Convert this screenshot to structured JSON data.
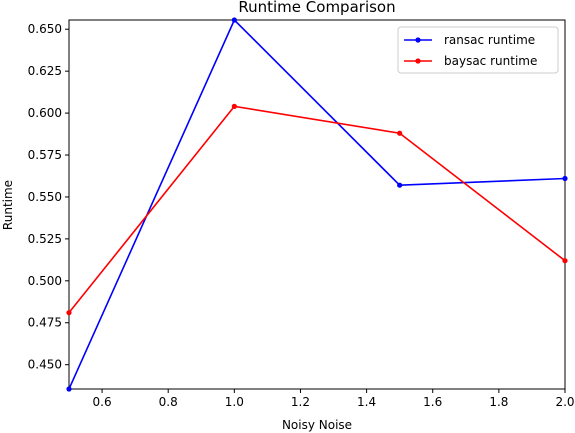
{
  "chart_data": {
    "type": "line",
    "title": "Runtime Comparison",
    "xlabel": "Noisy Noise",
    "ylabel": "Runtime",
    "xlim": [
      0.5,
      2.0
    ],
    "ylim": [
      0.4355,
      0.6555
    ],
    "x_ticks": [
      "0.6",
      "0.8",
      "1.0",
      "1.2",
      "1.4",
      "1.6",
      "1.8",
      "2.0"
    ],
    "x_tick_values": [
      0.6,
      0.8,
      1.0,
      1.2,
      1.4,
      1.6,
      1.8,
      2.0
    ],
    "y_ticks": [
      "0.450",
      "0.475",
      "0.500",
      "0.525",
      "0.550",
      "0.575",
      "0.600",
      "0.625",
      "0.650"
    ],
    "y_tick_values": [
      0.45,
      0.475,
      0.5,
      0.525,
      0.55,
      0.575,
      0.6,
      0.625,
      0.65
    ],
    "grid": false,
    "legend_position": "upper-right",
    "x": [
      0.5,
      1.0,
      1.5,
      2.0
    ],
    "series": [
      {
        "name": "ransac runtime",
        "color": "#0000ff",
        "values": [
          0.4355,
          0.6555,
          0.557,
          0.561
        ]
      },
      {
        "name": "baysac runtime",
        "color": "#ff0000",
        "values": [
          0.481,
          0.604,
          0.588,
          0.512
        ]
      }
    ]
  }
}
